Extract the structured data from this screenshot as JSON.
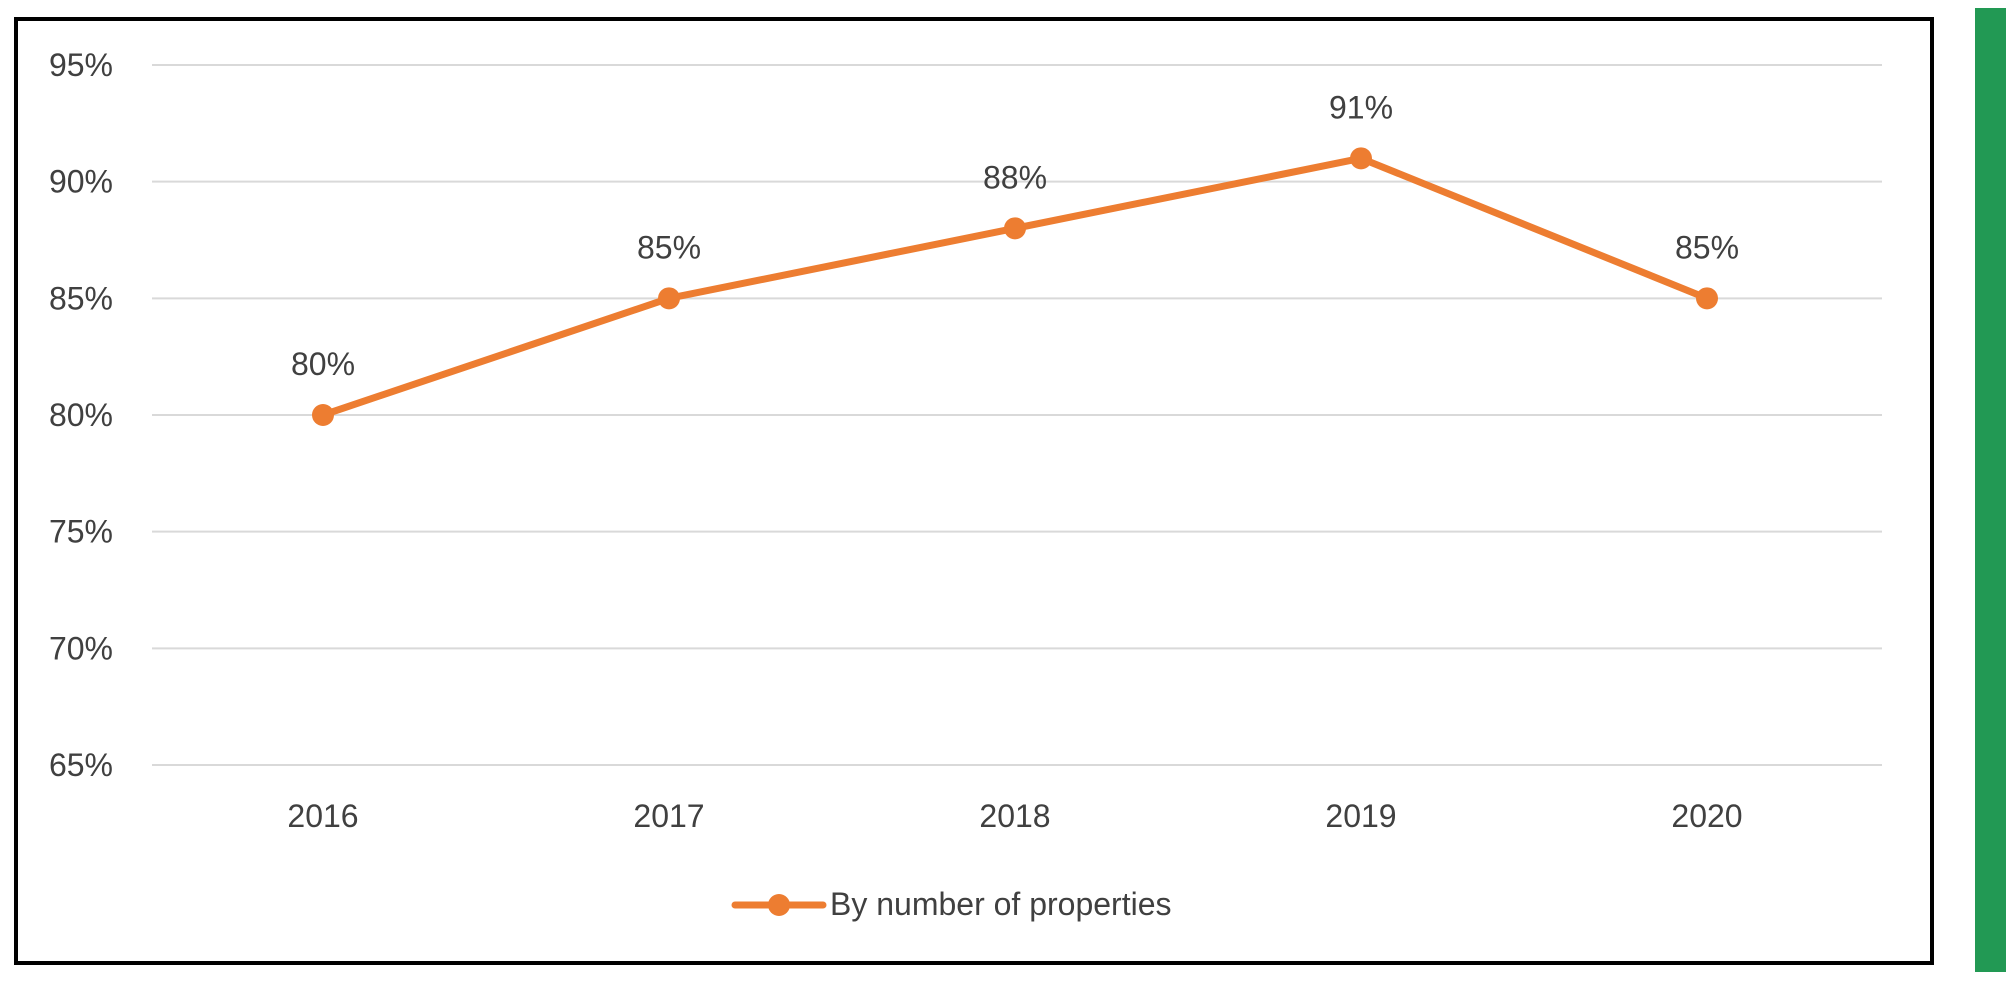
{
  "colors": {
    "series": "#ED7D31",
    "grid": "#D9D9D9",
    "text": "#404040",
    "frame": "#000000",
    "accent_bar": "#229954"
  },
  "chart_data": {
    "type": "line",
    "title": "",
    "xlabel": "",
    "ylabel": "",
    "categories": [
      "2016",
      "2017",
      "2018",
      "2019",
      "2020"
    ],
    "series": [
      {
        "name": "By number of properties",
        "values": [
          80,
          85,
          88,
          91,
          85
        ],
        "data_labels": [
          "80%",
          "85%",
          "88%",
          "91%",
          "85%"
        ]
      }
    ],
    "ylim": [
      65,
      95
    ],
    "y_ticks": [
      95,
      90,
      85,
      80,
      75,
      70,
      65
    ],
    "y_tick_labels": [
      "95%",
      "90%",
      "85%",
      "80%",
      "75%",
      "70%",
      "65%"
    ],
    "grid": true,
    "legend": "bottom-center",
    "markers": true
  }
}
